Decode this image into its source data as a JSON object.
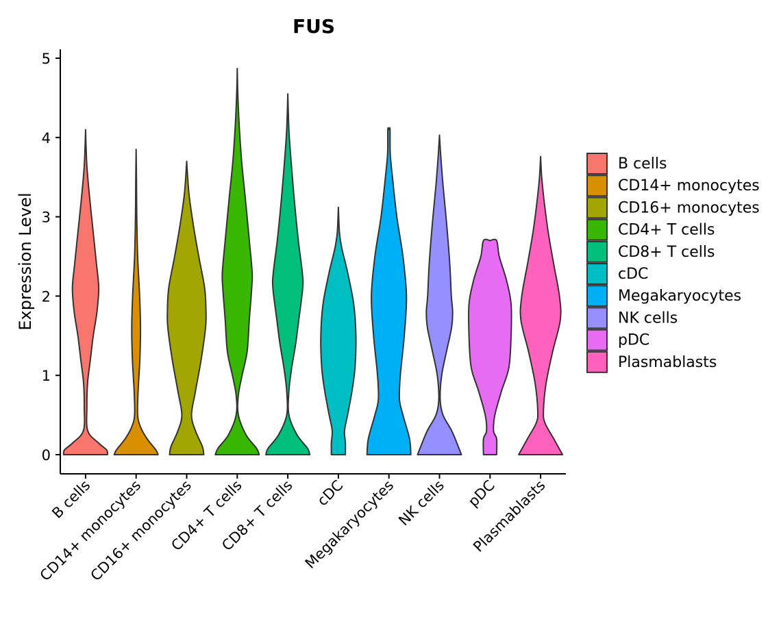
{
  "chart_data": {
    "type": "violin",
    "title": "FUS",
    "xlabel": "",
    "ylabel": "Expression Level",
    "ylim": [
      0,
      5.1
    ],
    "yticks": [
      0,
      1,
      2,
      3,
      4,
      5
    ],
    "categories": [
      "B cells",
      "CD14+ monocytes",
      "CD16+ monocytes",
      "CD4+ T cells",
      "CD8+ T cells",
      "cDC",
      "Megakaryocytes",
      "NK cells",
      "pDC",
      "Plasmablasts"
    ],
    "colors": [
      "#F8766D",
      "#D89000",
      "#A3A500",
      "#39B600",
      "#00BF7D",
      "#00BFC4",
      "#00B0F6",
      "#9590FF",
      "#E76BF3",
      "#FF62BC"
    ],
    "legend": {
      "position": "right",
      "entries": [
        "B cells",
        "CD14+ monocytes",
        "CD16+ monocytes",
        "CD4+ T cells",
        "CD8+ T cells",
        "cDC",
        "Megakaryocytes",
        "NK cells",
        "pDC",
        "Plasmablasts"
      ]
    },
    "violins": [
      {
        "category": "B cells",
        "max": 4.1,
        "profile": [
          [
            0,
            1.0
          ],
          [
            0.06,
            0.96
          ],
          [
            0.15,
            0.58
          ],
          [
            0.3,
            0.1
          ],
          [
            0.6,
            0.06
          ],
          [
            0.9,
            0.09
          ],
          [
            1.2,
            0.22
          ],
          [
            1.5,
            0.35
          ],
          [
            1.8,
            0.52
          ],
          [
            2.1,
            0.6
          ],
          [
            2.4,
            0.5
          ],
          [
            2.8,
            0.35
          ],
          [
            3.2,
            0.2
          ],
          [
            3.6,
            0.07
          ],
          [
            3.9,
            0.02
          ],
          [
            4.1,
            0
          ]
        ]
      },
      {
        "category": "CD14+ monocytes",
        "max": 3.85,
        "profile": [
          [
            0,
            1.0
          ],
          [
            0.06,
            0.9
          ],
          [
            0.2,
            0.5
          ],
          [
            0.35,
            0.2
          ],
          [
            0.5,
            0.07
          ],
          [
            0.8,
            0.09
          ],
          [
            1.2,
            0.17
          ],
          [
            1.6,
            0.2
          ],
          [
            2.0,
            0.16
          ],
          [
            2.5,
            0.07
          ],
          [
            3.0,
            0.03
          ],
          [
            3.5,
            0.015
          ],
          [
            3.85,
            0
          ]
        ]
      },
      {
        "category": "CD16+ monocytes",
        "max": 3.7,
        "profile": [
          [
            0,
            0.78
          ],
          [
            0.1,
            0.72
          ],
          [
            0.3,
            0.4
          ],
          [
            0.5,
            0.22
          ],
          [
            0.8,
            0.4
          ],
          [
            1.2,
            0.66
          ],
          [
            1.6,
            0.86
          ],
          [
            1.8,
            0.88
          ],
          [
            2.1,
            0.82
          ],
          [
            2.5,
            0.55
          ],
          [
            2.9,
            0.3
          ],
          [
            3.3,
            0.1
          ],
          [
            3.7,
            0
          ]
        ]
      },
      {
        "category": "CD4+ T cells",
        "max": 4.87,
        "profile": [
          [
            0,
            1.0
          ],
          [
            0.08,
            0.88
          ],
          [
            0.25,
            0.4
          ],
          [
            0.5,
            0.05
          ],
          [
            0.75,
            0.05
          ],
          [
            1.0,
            0.22
          ],
          [
            1.3,
            0.45
          ],
          [
            1.7,
            0.55
          ],
          [
            2.1,
            0.66
          ],
          [
            2.3,
            0.68
          ],
          [
            2.7,
            0.55
          ],
          [
            3.2,
            0.38
          ],
          [
            3.7,
            0.2
          ],
          [
            4.2,
            0.08
          ],
          [
            4.6,
            0.02
          ],
          [
            4.87,
            0
          ]
        ]
      },
      {
        "category": "CD8+ T cells",
        "max": 4.55,
        "profile": [
          [
            0,
            1.0
          ],
          [
            0.08,
            0.9
          ],
          [
            0.25,
            0.42
          ],
          [
            0.5,
            0.05
          ],
          [
            0.8,
            0.05
          ],
          [
            1.1,
            0.18
          ],
          [
            1.4,
            0.36
          ],
          [
            1.7,
            0.5
          ],
          [
            2.1,
            0.68
          ],
          [
            2.3,
            0.66
          ],
          [
            2.7,
            0.48
          ],
          [
            3.2,
            0.3
          ],
          [
            3.7,
            0.15
          ],
          [
            4.1,
            0.05
          ],
          [
            4.55,
            0
          ]
        ]
      },
      {
        "category": "cDC",
        "max": 3.12,
        "profile": [
          [
            0,
            0.32
          ],
          [
            0.15,
            0.32
          ],
          [
            0.3,
            0.28
          ],
          [
            0.5,
            0.42
          ],
          [
            0.8,
            0.62
          ],
          [
            1.1,
            0.76
          ],
          [
            1.5,
            0.8
          ],
          [
            1.9,
            0.7
          ],
          [
            2.3,
            0.42
          ],
          [
            2.6,
            0.16
          ],
          [
            2.8,
            0.05
          ],
          [
            3.12,
            0
          ]
        ]
      },
      {
        "category": "Megakaryocytes",
        "max": 4.1,
        "profile": [
          [
            0,
            1.0
          ],
          [
            0.2,
            0.94
          ],
          [
            0.5,
            0.64
          ],
          [
            0.7,
            0.48
          ],
          [
            1.0,
            0.52
          ],
          [
            1.5,
            0.7
          ],
          [
            2.0,
            0.8
          ],
          [
            2.5,
            0.64
          ],
          [
            3.0,
            0.36
          ],
          [
            3.5,
            0.16
          ],
          [
            3.8,
            0.06
          ],
          [
            4.1,
            0.05
          ],
          [
            4.1,
            0
          ]
        ]
      },
      {
        "category": "NK cells",
        "max": 4.03,
        "profile": [
          [
            0,
            1.0
          ],
          [
            0.1,
            0.86
          ],
          [
            0.3,
            0.56
          ],
          [
            0.5,
            0.16
          ],
          [
            0.7,
            0.03
          ],
          [
            1.0,
            0.1
          ],
          [
            1.3,
            0.32
          ],
          [
            1.6,
            0.55
          ],
          [
            1.8,
            0.6
          ],
          [
            2.0,
            0.54
          ],
          [
            2.4,
            0.47
          ],
          [
            2.9,
            0.33
          ],
          [
            3.4,
            0.16
          ],
          [
            3.8,
            0.05
          ],
          [
            4.03,
            0
          ]
        ]
      },
      {
        "category": "pDC",
        "max": 2.7,
        "profile": [
          [
            0,
            0.3
          ],
          [
            0.2,
            0.3
          ],
          [
            0.3,
            0.16
          ],
          [
            0.5,
            0.22
          ],
          [
            0.8,
            0.52
          ],
          [
            1.1,
            0.86
          ],
          [
            1.5,
            0.96
          ],
          [
            1.9,
            0.96
          ],
          [
            2.2,
            0.75
          ],
          [
            2.5,
            0.42
          ],
          [
            2.7,
            0.3
          ],
          [
            2.7,
            0
          ]
        ]
      },
      {
        "category": "Plasmablasts",
        "max": 3.76,
        "profile": [
          [
            0,
            1.0
          ],
          [
            0.2,
            0.6
          ],
          [
            0.4,
            0.2
          ],
          [
            0.55,
            0.13
          ],
          [
            0.9,
            0.25
          ],
          [
            1.3,
            0.55
          ],
          [
            1.7,
            0.9
          ],
          [
            2.0,
            0.86
          ],
          [
            2.4,
            0.6
          ],
          [
            2.8,
            0.35
          ],
          [
            3.2,
            0.16
          ],
          [
            3.5,
            0.05
          ],
          [
            3.76,
            0
          ]
        ]
      }
    ]
  }
}
